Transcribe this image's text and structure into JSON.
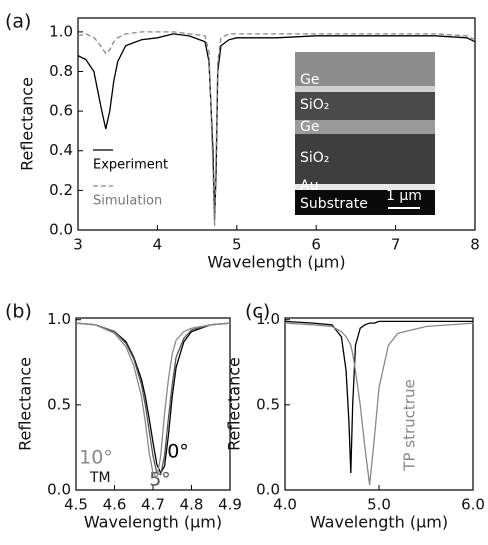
{
  "chart_data": [
    {
      "type": "line",
      "panel_label": "(a)",
      "xlabel": "Wavelength (μm)",
      "ylabel": "Reflectance",
      "xlim": [
        3,
        8
      ],
      "ylim": [
        0,
        1.07
      ],
      "xticks": [
        3,
        4,
        5,
        6,
        7,
        8
      ],
      "yticks": [
        {
          "value": 0,
          "label": "0.0"
        },
        0.2,
        0.4,
        0.6,
        0.8,
        {
          "value": 1,
          "label": "1.0"
        }
      ],
      "x": [
        3,
        3.1,
        3.2,
        3.25,
        3.3,
        3.35,
        3.4,
        3.45,
        3.5,
        3.6,
        3.8,
        4.0,
        4.2,
        4.4,
        4.6,
        4.65,
        4.7,
        4.72,
        4.74,
        4.76,
        4.8,
        4.9,
        5.0,
        5.5,
        6,
        6.5,
        7,
        7.5,
        7.9,
        8
      ],
      "series": [
        {
          "name": "Experiment",
          "color": "#000000",
          "linestyle": "solid",
          "values": [
            0.88,
            0.86,
            0.8,
            0.7,
            0.6,
            0.51,
            0.6,
            0.75,
            0.85,
            0.93,
            0.96,
            0.97,
            0.99,
            0.98,
            0.95,
            0.85,
            0.4,
            0.05,
            0.3,
            0.8,
            0.93,
            0.96,
            0.97,
            0.97,
            0.98,
            0.98,
            0.98,
            0.98,
            0.97,
            0.95
          ]
        },
        {
          "name": "Simulation",
          "color": "#888888",
          "linestyle": "dashed",
          "values": [
            0.98,
            0.99,
            0.97,
            0.95,
            0.92,
            0.89,
            0.91,
            0.95,
            0.97,
            0.99,
            1.0,
            1.0,
            1.0,
            0.99,
            0.98,
            0.9,
            0.3,
            0.02,
            0.4,
            0.85,
            0.97,
            0.99,
            0.99,
            0.99,
            0.99,
            0.99,
            0.99,
            0.99,
            0.98,
            0.96
          ]
        }
      ],
      "annotations": [
        "Ge",
        "SiO₂",
        "Ge",
        "SiO₂",
        "Au",
        "Substrate",
        "1 μm"
      ]
    },
    {
      "type": "line",
      "panel_label": "(b)",
      "xlabel": "Wavelength (μm)",
      "ylabel": "Reflectance",
      "xlim": [
        4.5,
        4.9
      ],
      "ylim": [
        0,
        1.01
      ],
      "xticks": [
        4.5,
        4.6,
        4.7,
        4.8,
        4.9
      ],
      "yticks": [
        {
          "value": 0,
          "label": "0.0"
        },
        0.5,
        {
          "value": 1,
          "label": "1.0"
        }
      ],
      "x": [
        4.5,
        4.55,
        4.6,
        4.63,
        4.65,
        4.67,
        4.68,
        4.69,
        4.7,
        4.71,
        4.72,
        4.73,
        4.74,
        4.75,
        4.76,
        4.78,
        4.8,
        4.85,
        4.9
      ],
      "series": [
        {
          "name": "0°",
          "color": "#000000",
          "linestyle": "solid",
          "values": [
            0.98,
            0.97,
            0.93,
            0.87,
            0.78,
            0.65,
            0.55,
            0.42,
            0.28,
            0.15,
            0.1,
            0.14,
            0.32,
            0.55,
            0.72,
            0.87,
            0.93,
            0.97,
            0.98
          ]
        },
        {
          "name": "5°",
          "color": "#555555",
          "linestyle": "solid",
          "values": [
            0.98,
            0.97,
            0.93,
            0.86,
            0.77,
            0.62,
            0.5,
            0.35,
            0.2,
            0.1,
            0.09,
            0.2,
            0.42,
            0.62,
            0.78,
            0.89,
            0.94,
            0.97,
            0.98
          ]
        },
        {
          "name": "10°",
          "color": "#8a8a8a",
          "linestyle": "solid",
          "values": [
            0.98,
            0.97,
            0.92,
            0.84,
            0.73,
            0.55,
            0.4,
            0.22,
            0.1,
            0.07,
            0.2,
            0.45,
            0.65,
            0.8,
            0.88,
            0.93,
            0.95,
            0.97,
            0.98
          ]
        }
      ],
      "annotations": [
        "TM"
      ]
    },
    {
      "type": "line",
      "panel_label": "(c)",
      "xlabel": "Wavelength (μm)",
      "ylabel": "Reflectance",
      "xlim": [
        4.0,
        6.0
      ],
      "ylim": [
        0,
        1.01
      ],
      "xticks": [
        {
          "value": 4,
          "label": "4.0"
        },
        {
          "value": 5,
          "label": "5.0"
        },
        {
          "value": 6,
          "label": "6.0"
        }
      ],
      "yticks": [
        {
          "value": 0,
          "label": "0.0"
        },
        0.5,
        {
          "value": 1,
          "label": "1.0"
        }
      ],
      "x": [
        4.0,
        4.3,
        4.5,
        4.6,
        4.65,
        4.68,
        4.7,
        4.72,
        4.75,
        4.8,
        4.85,
        4.9,
        4.95,
        5.0,
        5.1,
        5.2,
        5.5,
        6.0
      ],
      "series": [
        {
          "color": "#000000",
          "linestyle": "solid",
          "values": [
            0.99,
            0.98,
            0.97,
            0.9,
            0.7,
            0.4,
            0.1,
            0.5,
            0.85,
            0.95,
            0.97,
            0.98,
            0.98,
            0.99,
            0.99,
            0.99,
            0.99,
            0.99
          ]
        },
        {
          "name": "TP structrue",
          "color": "#888888",
          "linestyle": "solid",
          "values": [
            0.98,
            0.97,
            0.96,
            0.93,
            0.9,
            0.87,
            0.85,
            0.8,
            0.7,
            0.5,
            0.25,
            0.03,
            0.3,
            0.6,
            0.85,
            0.92,
            0.96,
            0.98
          ]
        }
      ]
    }
  ]
}
